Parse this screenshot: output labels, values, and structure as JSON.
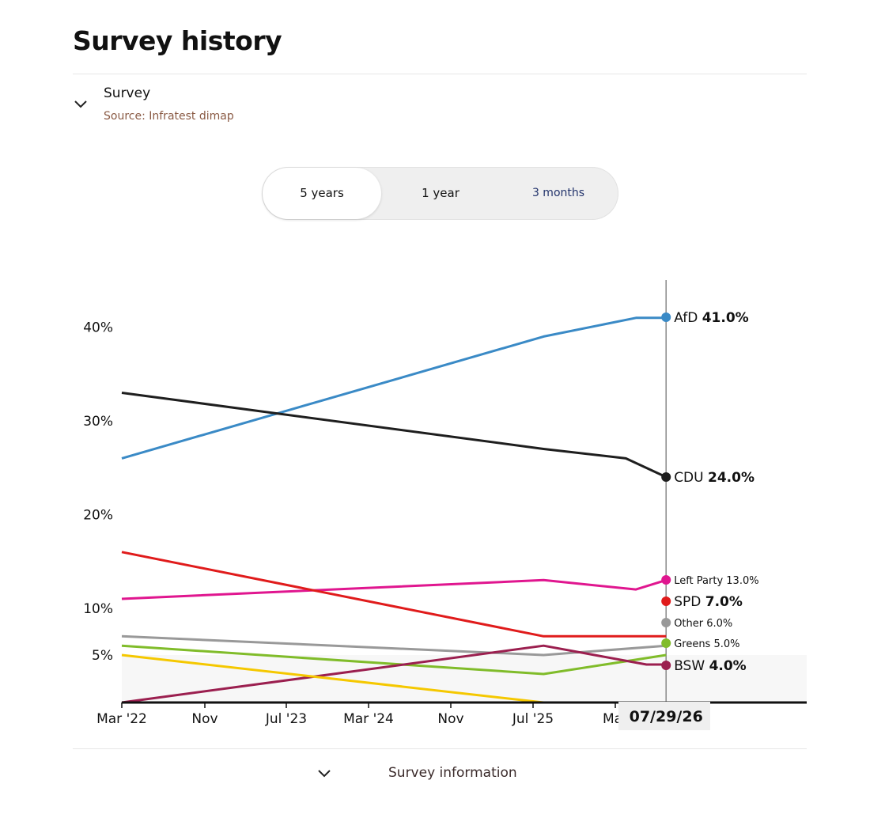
{
  "page": {
    "title": "Survey history"
  },
  "survey": {
    "label": "Survey",
    "source": "Source: Infratest dimap"
  },
  "range_tabs": {
    "five_years": "5 years",
    "one_year": "1 year",
    "three_months": "3 months",
    "selected": "5 years"
  },
  "footer": {
    "label": "Survey information"
  },
  "chart_data": {
    "type": "line",
    "x_ticks": [
      "Mar '22",
      "Nov",
      "Jul '23",
      "Mar '24",
      "Nov",
      "Jul '25",
      "Mar"
    ],
    "x_tick_dates": [
      "2022-03-01",
      "2022-11-01",
      "2023-07-01",
      "2024-03-01",
      "2024-11-01",
      "2025-07-01",
      "2026-03-01"
    ],
    "y_ticks": [
      {
        "value": 5,
        "label": "5%"
      },
      {
        "value": 10,
        "label": "10%"
      },
      {
        "value": 20,
        "label": "20%"
      },
      {
        "value": 30,
        "label": "30%"
      },
      {
        "value": 40,
        "label": "40%"
      }
    ],
    "y_scale": "piecewise-linear (0–5% band compressed)",
    "ylim": [
      0,
      45
    ],
    "cursor_date": "07/29/26",
    "series": [
      {
        "name": "AfD",
        "color": "#3a8ac6",
        "end_label": "41.0%",
        "emphasis": "bold",
        "points": [
          [
            "2022-03-01",
            26
          ],
          [
            "2025-08-01",
            39
          ],
          [
            "2026-05-01",
            41
          ],
          [
            "2026-07-29",
            41
          ]
        ]
      },
      {
        "name": "CDU",
        "color": "#1e1e1e",
        "end_label": "24.0%",
        "emphasis": "bold",
        "points": [
          [
            "2022-03-01",
            33
          ],
          [
            "2025-08-01",
            27
          ],
          [
            "2026-04-01",
            26
          ],
          [
            "2026-07-29",
            24
          ]
        ]
      },
      {
        "name": "Left Party",
        "color": "#e0168f",
        "end_label": "13.0%",
        "emphasis": "small",
        "points": [
          [
            "2022-03-01",
            11
          ],
          [
            "2025-08-01",
            13
          ],
          [
            "2026-05-01",
            12
          ],
          [
            "2026-07-29",
            13
          ]
        ]
      },
      {
        "name": "SPD",
        "color": "#e01b1b",
        "end_label": "7.0%",
        "emphasis": "bold",
        "points": [
          [
            "2022-03-01",
            16
          ],
          [
            "2025-08-01",
            7
          ],
          [
            "2026-07-29",
            7
          ]
        ]
      },
      {
        "name": "Other",
        "color": "#999999",
        "end_label": "6.0%",
        "emphasis": "small",
        "points": [
          [
            "2022-03-01",
            7
          ],
          [
            "2025-08-01",
            5
          ],
          [
            "2026-07-29",
            6
          ]
        ]
      },
      {
        "name": "Greens",
        "color": "#80bc2a",
        "end_label": "5.0%",
        "emphasis": "small",
        "points": [
          [
            "2022-03-01",
            6
          ],
          [
            "2025-08-01",
            3
          ],
          [
            "2026-07-29",
            5
          ]
        ]
      },
      {
        "name": "BSW",
        "color": "#9b1f4f",
        "end_label": "4.0%",
        "emphasis": "bold",
        "points": [
          [
            "2022-03-01",
            0
          ],
          [
            "2025-08-01",
            6
          ],
          [
            "2026-06-01",
            4
          ],
          [
            "2026-07-29",
            4
          ]
        ]
      },
      {
        "name": "",
        "color": "#f5c800",
        "end_label": "",
        "emphasis": "none",
        "points": [
          [
            "2022-03-01",
            5
          ],
          [
            "2025-08-01",
            0
          ],
          [
            "2026-05-01",
            0
          ]
        ]
      }
    ]
  }
}
